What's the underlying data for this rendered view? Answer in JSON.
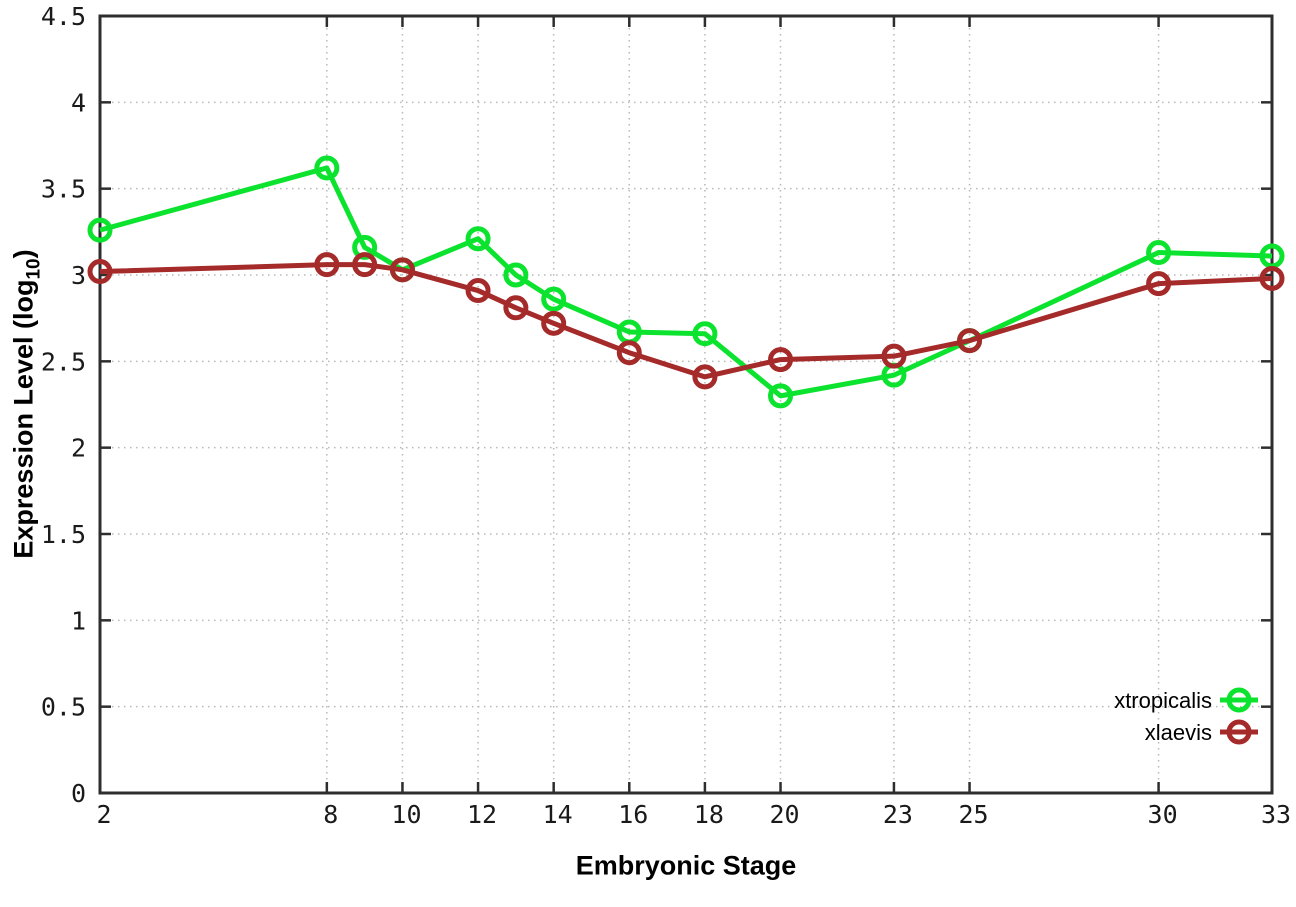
{
  "chart_data": {
    "type": "line",
    "xlabel": "Embryonic Stage",
    "ylabel_prefix": "Expression Level (log",
    "ylabel_sub": "10",
    "ylabel_suffix": ")",
    "x": [
      2,
      8,
      9,
      10,
      12,
      13,
      14,
      16,
      18,
      20,
      23,
      25,
      30,
      33
    ],
    "x_tick_labels": [
      2,
      8,
      10,
      12,
      14,
      16,
      18,
      20,
      23,
      25,
      30,
      33
    ],
    "xlim": [
      2,
      33
    ],
    "ylim": [
      0,
      4.5
    ],
    "y_tick_step": 0.5,
    "grid": true,
    "legend_position": "bottom-right",
    "series": [
      {
        "name": "xtropicalis",
        "color": "#0ce32e",
        "values": [
          3.26,
          3.62,
          3.16,
          3.03,
          3.21,
          3.0,
          2.86,
          2.67,
          2.66,
          2.3,
          2.42,
          2.62,
          3.13,
          3.11
        ]
      },
      {
        "name": "xlaevis",
        "color": "#a52a2a",
        "values": [
          3.02,
          3.06,
          3.06,
          3.03,
          2.91,
          2.81,
          2.72,
          2.55,
          2.41,
          2.51,
          2.53,
          2.62,
          2.95,
          2.98
        ]
      }
    ]
  },
  "style_colors": {
    "border": "#2e2e2e",
    "grid": "#b8b8b8",
    "tick_text": "#1a1a1a"
  }
}
